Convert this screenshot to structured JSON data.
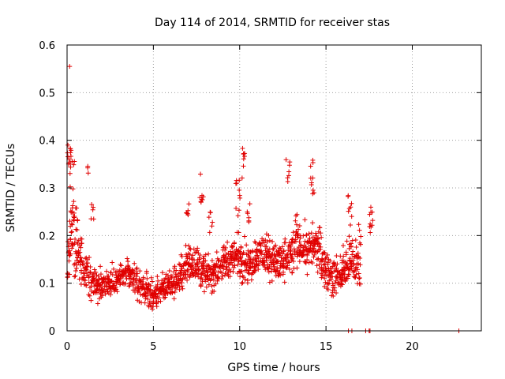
{
  "chart_data": {
    "type": "scatter",
    "title": "Day 114 of 2014, SRMTID for receiver stas",
    "xlabel": "GPS time / hours",
    "ylabel": "SRMTID / TECUs",
    "xlim": [
      0,
      24
    ],
    "ylim": [
      0,
      0.6
    ],
    "grid": true,
    "marker": "+",
    "color": "#e00000",
    "x_ticks": [
      0,
      5,
      10,
      15,
      20
    ],
    "y_ticks": [
      0,
      0.1,
      0.2,
      0.3,
      0.4,
      0.5,
      0.6
    ],
    "x_tick_labels": [
      "0",
      "5",
      "10",
      "15",
      "20"
    ],
    "y_tick_labels": [
      "0",
      "0.1",
      "0.2",
      "0.3",
      "0.4",
      "0.5",
      "0.6"
    ],
    "series": [
      {
        "name": "SRMTID",
        "envelope": [
          [
            0.0,
            0.13,
            0.07
          ],
          [
            0.2,
            0.22,
            0.09
          ],
          [
            0.4,
            0.2,
            0.08
          ],
          [
            0.6,
            0.17,
            0.07
          ],
          [
            0.8,
            0.15,
            0.06
          ],
          [
            1.0,
            0.13,
            0.05
          ],
          [
            1.3,
            0.11,
            0.05
          ],
          [
            1.6,
            0.1,
            0.04
          ],
          [
            2.0,
            0.095,
            0.035
          ],
          [
            2.5,
            0.1,
            0.035
          ],
          [
            3.0,
            0.11,
            0.035
          ],
          [
            3.5,
            0.12,
            0.035
          ],
          [
            4.0,
            0.1,
            0.035
          ],
          [
            4.5,
            0.09,
            0.035
          ],
          [
            5.0,
            0.07,
            0.03
          ],
          [
            5.5,
            0.09,
            0.035
          ],
          [
            6.0,
            0.1,
            0.035
          ],
          [
            6.5,
            0.11,
            0.04
          ],
          [
            7.0,
            0.14,
            0.05
          ],
          [
            7.5,
            0.14,
            0.045
          ],
          [
            8.0,
            0.12,
            0.04
          ],
          [
            8.5,
            0.12,
            0.04
          ],
          [
            9.0,
            0.14,
            0.04
          ],
          [
            9.5,
            0.15,
            0.045
          ],
          [
            10.0,
            0.16,
            0.05
          ],
          [
            10.5,
            0.14,
            0.05
          ],
          [
            11.0,
            0.16,
            0.045
          ],
          [
            11.5,
            0.16,
            0.045
          ],
          [
            12.0,
            0.15,
            0.045
          ],
          [
            12.5,
            0.14,
            0.045
          ],
          [
            13.0,
            0.16,
            0.05
          ],
          [
            13.5,
            0.18,
            0.05
          ],
          [
            14.0,
            0.17,
            0.05
          ],
          [
            14.5,
            0.18,
            0.055
          ],
          [
            15.0,
            0.13,
            0.05
          ],
          [
            15.5,
            0.11,
            0.05
          ],
          [
            16.0,
            0.12,
            0.05
          ],
          [
            16.5,
            0.15,
            0.06
          ],
          [
            17.0,
            0.13,
            0.05
          ]
        ],
        "bursts": [
          [
            0.15,
            0.36,
            0.03,
            10
          ],
          [
            0.3,
            0.33,
            0.04,
            8
          ],
          [
            0.5,
            0.26,
            0.03,
            8
          ],
          [
            1.2,
            0.34,
            0.01,
            3
          ],
          [
            1.5,
            0.25,
            0.02,
            5
          ],
          [
            7.0,
            0.25,
            0.02,
            6
          ],
          [
            7.8,
            0.3,
            0.03,
            8
          ],
          [
            8.3,
            0.22,
            0.03,
            6
          ],
          [
            9.9,
            0.28,
            0.04,
            10
          ],
          [
            10.2,
            0.35,
            0.04,
            8
          ],
          [
            10.5,
            0.25,
            0.03,
            6
          ],
          [
            12.8,
            0.33,
            0.03,
            7
          ],
          [
            13.3,
            0.23,
            0.03,
            6
          ],
          [
            14.2,
            0.32,
            0.04,
            10
          ],
          [
            16.4,
            0.25,
            0.04,
            8
          ],
          [
            16.9,
            0.19,
            0.04,
            6
          ],
          [
            17.6,
            0.24,
            0.04,
            10
          ]
        ],
        "outliers": [
          [
            0.15,
            0.555
          ],
          [
            0.05,
            0.39
          ],
          [
            16.3,
            0.0
          ],
          [
            16.5,
            0.0
          ],
          [
            17.3,
            0.0
          ],
          [
            17.5,
            0.0
          ],
          [
            17.55,
            0.0
          ],
          [
            22.7,
            0.0
          ]
        ],
        "x_end": 17.0,
        "seed": 114
      }
    ]
  }
}
